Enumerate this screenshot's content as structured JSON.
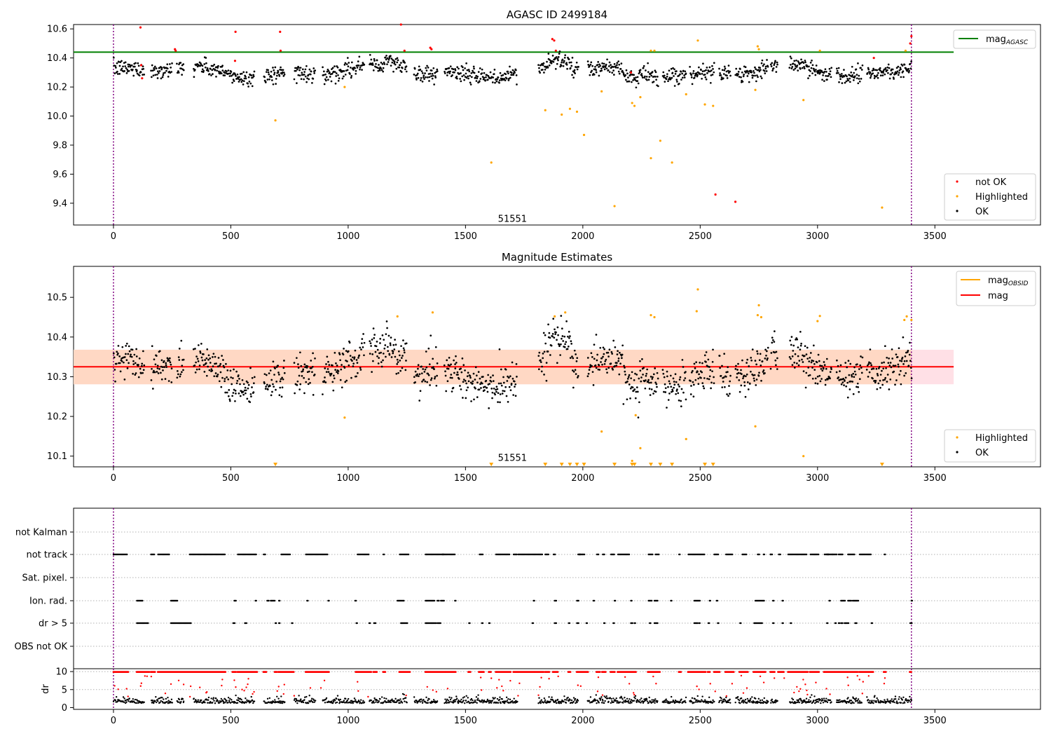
{
  "figure": {
    "vline_x": [
      0,
      3400
    ],
    "vline_color": "#800080"
  },
  "chart_data": [
    {
      "id": "top",
      "type": "scatter",
      "title": "AGASC ID 2499184",
      "xlim": [
        -170,
        3950
      ],
      "ylim": [
        9.25,
        10.63
      ],
      "xticks": [
        0,
        500,
        1000,
        1500,
        2000,
        2500,
        3000,
        3500
      ],
      "yticks": [
        9.4,
        9.6,
        9.8,
        10.0,
        10.2,
        10.4,
        10.6
      ],
      "ytick_labels": [
        "9.4",
        "9.6",
        "9.8",
        "10.0",
        "10.2",
        "10.4",
        "10.6"
      ],
      "annotation": {
        "text": "51551",
        "x": 1700,
        "y": 9.29
      },
      "hline": {
        "label": "mag_AGASC",
        "value": 10.44,
        "x_range": [
          -170,
          3580
        ],
        "color": "#008000"
      },
      "legend_upper": [
        {
          "label": "mag",
          "sub": "AGASC",
          "color": "#008000"
        }
      ],
      "legend_lower": [
        {
          "label": "not OK",
          "color": "#ff0000"
        },
        {
          "label": "Highlighted",
          "color": "#ffa500"
        },
        {
          "label": "OK",
          "color": "#000000"
        }
      ],
      "series": [
        {
          "name": "not OK",
          "color": "#ff0000",
          "points": [
            [
              115,
              10.61
            ],
            [
              118,
              10.35
            ],
            [
              122,
              10.26
            ],
            [
              262,
              10.46
            ],
            [
              265,
              10.45
            ],
            [
              520,
              10.58
            ],
            [
              518,
              10.38
            ],
            [
              710,
              10.58
            ],
            [
              712,
              10.45
            ],
            [
              1225,
              10.63
            ],
            [
              1240,
              10.45
            ],
            [
              1350,
              10.47
            ],
            [
              1355,
              10.46
            ],
            [
              1870,
              10.53
            ],
            [
              1878,
              10.52
            ],
            [
              1885,
              10.45
            ],
            [
              2205,
              10.3
            ],
            [
              2565,
              9.46
            ],
            [
              2650,
              9.41
            ],
            [
              3240,
              10.4
            ],
            [
              3395,
              10.5
            ],
            [
              3400,
              10.55
            ]
          ]
        },
        {
          "name": "Highlighted",
          "color": "#ffa500",
          "points": [
            [
              690,
              9.97
            ],
            [
              985,
              10.2
            ],
            [
              1610,
              9.68
            ],
            [
              1840,
              10.04
            ],
            [
              1910,
              10.01
            ],
            [
              1945,
              10.05
            ],
            [
              1975,
              10.03
            ],
            [
              2005,
              9.87
            ],
            [
              2080,
              10.17
            ],
            [
              2135,
              9.38
            ],
            [
              2210,
              10.09
            ],
            [
              2220,
              10.07
            ],
            [
              2245,
              10.13
            ],
            [
              2290,
              9.71
            ],
            [
              2290,
              10.45
            ],
            [
              2305,
              10.45
            ],
            [
              2330,
              9.83
            ],
            [
              2380,
              9.68
            ],
            [
              2440,
              10.15
            ],
            [
              2490,
              10.52
            ],
            [
              2520,
              10.08
            ],
            [
              2555,
              10.07
            ],
            [
              2735,
              10.18
            ],
            [
              2745,
              10.48
            ],
            [
              2750,
              10.46
            ],
            [
              2940,
              10.11
            ],
            [
              3010,
              10.45
            ],
            [
              3275,
              9.37
            ],
            [
              3375,
              10.45
            ]
          ]
        },
        {
          "name": "OK",
          "color": "#000000",
          "generated": true
        }
      ],
      "ok_segments": [
        [
          0,
          130
        ],
        [
          160,
          250
        ],
        [
          270,
          300
        ],
        [
          340,
          600
        ],
        [
          640,
          730
        ],
        [
          770,
          860
        ],
        [
          890,
          1070
        ],
        [
          1090,
          1250
        ],
        [
          1280,
          1380
        ],
        [
          1410,
          1720
        ],
        [
          1810,
          1980
        ],
        [
          2020,
          2320
        ],
        [
          2340,
          2440
        ],
        [
          2455,
          2560
        ],
        [
          2580,
          2630
        ],
        [
          2650,
          2790
        ],
        [
          2800,
          2830
        ],
        [
          2880,
          3060
        ],
        [
          3080,
          3190
        ],
        [
          3210,
          3400
        ]
      ]
    },
    {
      "id": "middle",
      "type": "scatter",
      "title": "Magnitude Estimates",
      "xlim": [
        -170,
        3950
      ],
      "ylim": [
        10.073,
        10.578
      ],
      "xticks": [
        0,
        500,
        1000,
        1500,
        2000,
        2500,
        3000,
        3500
      ],
      "yticks": [
        10.1,
        10.2,
        10.3,
        10.4,
        10.5
      ],
      "ytick_labels": [
        "10.1",
        "10.2",
        "10.3",
        "10.4",
        "10.5"
      ],
      "annotation": {
        "text": "51551",
        "x": 1700,
        "y": 10.095
      },
      "hline": {
        "label": "mag",
        "value": 10.325,
        "x_range": [
          -170,
          3580
        ],
        "color": "#ff0000"
      },
      "band_outer": {
        "y": [
          10.281,
          10.368
        ],
        "x_range": [
          -170,
          3580
        ],
        "color": "#ffe0e6"
      },
      "band_inner": {
        "y": [
          10.281,
          10.368
        ],
        "x_range": [
          -170,
          3400
        ],
        "color": "#ffd8c4"
      },
      "obsid_line": {
        "label": "mag_OBSID",
        "color": "#ffa500"
      },
      "legend_upper": [
        {
          "label": "mag",
          "sub": "OBSID",
          "color": "#ffa500"
        },
        {
          "label": "mag",
          "sub": "",
          "color": "#ff0000"
        }
      ],
      "legend_lower": [
        {
          "label": "Highlighted",
          "color": "#ffa500"
        },
        {
          "label": "OK",
          "color": "#000000"
        }
      ],
      "series": [
        {
          "name": "Highlighted",
          "color": "#ffa500",
          "points": [
            [
              985,
              10.197
            ],
            [
              1210,
              10.452
            ],
            [
              1360,
              10.462
            ],
            [
              1880,
              10.452
            ],
            [
              1925,
              10.462
            ],
            [
              2080,
              10.162
            ],
            [
              2210,
              10.088
            ],
            [
              2225,
              10.203
            ],
            [
              2245,
              10.12
            ],
            [
              2290,
              10.455
            ],
            [
              2305,
              10.45
            ],
            [
              2440,
              10.143
            ],
            [
              2485,
              10.465
            ],
            [
              2490,
              10.52
            ],
            [
              2735,
              10.175
            ],
            [
              2745,
              10.455
            ],
            [
              2750,
              10.48
            ],
            [
              2760,
              10.45
            ],
            [
              2940,
              10.1
            ],
            [
              3000,
              10.44
            ],
            [
              3010,
              10.453
            ],
            [
              3370,
              10.443
            ],
            [
              3380,
              10.452
            ],
            [
              3400,
              10.443
            ]
          ]
        },
        {
          "name": "OK",
          "color": "#000000",
          "generated": true
        }
      ],
      "triangles": {
        "color": "#ffa500",
        "y": 10.078,
        "x": [
          690,
          1610,
          1840,
          1910,
          1945,
          1975,
          2005,
          2135,
          2210,
          2220,
          2290,
          2330,
          2380,
          2520,
          2555,
          3275
        ]
      }
    },
    {
      "id": "flags",
      "type": "scatter",
      "xlim": [
        -170,
        3950
      ],
      "categories": [
        "not Kalman",
        "not track",
        "Sat. pixel.",
        "Ion. rad.",
        "dr > 5",
        "OBS not OK"
      ],
      "flag_intervals": {
        "not Kalman": [],
        "not track": [
          [
            0,
            60
          ],
          [
            160,
            175
          ],
          [
            190,
            240
          ],
          [
            325,
            475
          ],
          [
            530,
            610
          ],
          [
            640,
            650
          ],
          [
            715,
            755
          ],
          [
            820,
            915
          ],
          [
            1040,
            1090
          ],
          [
            1150,
            1155
          ],
          [
            1220,
            1260
          ],
          [
            1330,
            1395
          ],
          [
            1400,
            1410
          ],
          [
            1400,
            1455
          ],
          [
            1560,
            1575
          ],
          [
            1630,
            1650
          ],
          [
            1660,
            1690
          ],
          [
            1705,
            1720
          ],
          [
            1650,
            1660
          ],
          [
            1840,
            1855
          ],
          [
            1725,
            1830
          ],
          [
            1875,
            1885
          ],
          [
            1985,
            1990
          ],
          [
            1980,
            2000
          ],
          [
            2000,
            2010
          ],
          [
            2060,
            2070
          ],
          [
            2085,
            2095
          ],
          [
            2120,
            2135
          ],
          [
            2150,
            2200
          ],
          [
            2280,
            2300
          ],
          [
            2310,
            2325
          ],
          [
            2410,
            2415
          ],
          [
            2450,
            2520
          ],
          [
            2560,
            2580
          ],
          [
            2680,
            2700
          ],
          [
            2610,
            2640
          ],
          [
            2745,
            2755
          ],
          [
            2770,
            2775
          ],
          [
            2800,
            2810
          ],
          [
            2835,
            2845
          ],
          [
            2800,
            2800
          ],
          [
            2875,
            2955
          ],
          [
            2970,
            3005
          ],
          [
            3030,
            3060
          ],
          [
            3040,
            3050
          ],
          [
            3060,
            3065
          ],
          [
            3065,
            3085
          ],
          [
            3090,
            3110
          ],
          [
            3130,
            3160
          ],
          [
            3180,
            3200
          ],
          [
            3200,
            3230
          ],
          [
            3285,
            3290
          ]
        ],
        "Sat. pixel.": [],
        "Ion. rad.": [
          [
            100,
            125
          ],
          [
            245,
            275
          ],
          [
            515,
            525
          ],
          [
            605,
            610
          ],
          [
            655,
            665
          ],
          [
            670,
            690
          ],
          [
            705,
            710
          ],
          [
            825,
            830
          ],
          [
            915,
            920
          ],
          [
            1030,
            1035
          ],
          [
            1210,
            1240
          ],
          [
            1330,
            1370
          ],
          [
            1380,
            1390
          ],
          [
            1395,
            1410
          ],
          [
            1455,
            1460
          ],
          [
            1790,
            1795
          ],
          [
            1880,
            1890
          ],
          [
            1975,
            1985
          ],
          [
            2045,
            2050
          ],
          [
            2135,
            2140
          ],
          [
            2205,
            2210
          ],
          [
            2280,
            2295
          ],
          [
            2305,
            2320
          ],
          [
            2375,
            2380
          ],
          [
            2475,
            2500
          ],
          [
            2540,
            2545
          ],
          [
            2570,
            2575
          ],
          [
            2735,
            2775
          ],
          [
            2810,
            2815
          ],
          [
            2850,
            2855
          ],
          [
            3050,
            3055
          ],
          [
            3100,
            3120
          ],
          [
            3130,
            3145
          ],
          [
            3150,
            3175
          ],
          [
            3400,
            3405
          ]
        ],
        "dr > 5": [
          [
            100,
            150
          ],
          [
            245,
            330
          ],
          [
            510,
            520
          ],
          [
            560,
            570
          ],
          [
            690,
            695
          ],
          [
            705,
            710
          ],
          [
            760,
            765
          ],
          [
            1035,
            1040
          ],
          [
            1090,
            1095
          ],
          [
            1110,
            1120
          ],
          [
            1225,
            1255
          ],
          [
            1330,
            1375
          ],
          [
            1380,
            1395
          ],
          [
            1515,
            1520
          ],
          [
            1570,
            1575
          ],
          [
            1600,
            1605
          ],
          [
            1785,
            1790
          ],
          [
            1880,
            1890
          ],
          [
            1940,
            1945
          ],
          [
            1975,
            1985
          ],
          [
            2015,
            2020
          ],
          [
            2090,
            2095
          ],
          [
            2130,
            2135
          ],
          [
            2205,
            2215
          ],
          [
            2220,
            2225
          ],
          [
            2285,
            2290
          ],
          [
            2305,
            2320
          ],
          [
            2475,
            2490
          ],
          [
            2495,
            2500
          ],
          [
            2535,
            2540
          ],
          [
            2575,
            2580
          ],
          [
            2670,
            2675
          ],
          [
            2730,
            2765
          ],
          [
            2810,
            2815
          ],
          [
            2850,
            2855
          ],
          [
            2885,
            2890
          ],
          [
            3040,
            3045
          ],
          [
            3075,
            3080
          ],
          [
            3090,
            3095
          ],
          [
            3100,
            3110
          ],
          [
            3115,
            3135
          ],
          [
            3160,
            3170
          ],
          [
            3230,
            3235
          ],
          [
            3395,
            3405
          ]
        ],
        "OBS not OK": []
      }
    },
    {
      "id": "dr",
      "type": "scatter",
      "xlim": [
        -170,
        3950
      ],
      "ylim": [
        -0.5,
        10.8
      ],
      "xticks": [
        0,
        500,
        1000,
        1500,
        2000,
        2500,
        3000,
        3500
      ],
      "yticks": [
        0,
        5,
        10
      ],
      "ytick_labels": [
        "0",
        "5",
        "10"
      ],
      "ylabel": "dr",
      "series": [
        {
          "name": "dr",
          "color": "#000000",
          "generated": true
        },
        {
          "name": "dr > 5",
          "color": "#ff0000",
          "generated": true
        }
      ]
    }
  ]
}
